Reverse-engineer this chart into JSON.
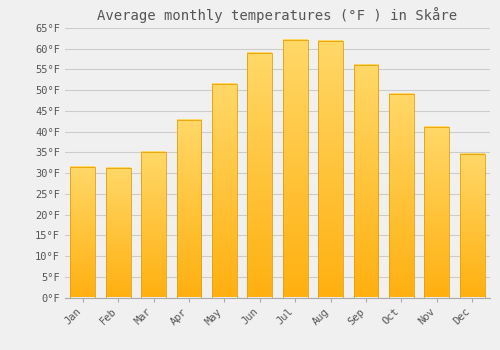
{
  "title": "Average monthly temperatures (°F ) in Skåre",
  "months": [
    "Jan",
    "Feb",
    "Mar",
    "Apr",
    "May",
    "Jun",
    "Jul",
    "Aug",
    "Sep",
    "Oct",
    "Nov",
    "Dec"
  ],
  "values": [
    31.5,
    31.3,
    35.1,
    42.8,
    51.4,
    59.0,
    62.1,
    61.9,
    56.1,
    49.1,
    41.2,
    34.7
  ],
  "bar_color_bottom": "#FFB010",
  "bar_color_top": "#FFD868",
  "bar_edge_color": "#E8A000",
  "background_color": "#F0F0F0",
  "grid_color": "#CCCCCC",
  "text_color": "#555555",
  "ylim": [
    0,
    65
  ],
  "yticks": [
    0,
    5,
    10,
    15,
    20,
    25,
    30,
    35,
    40,
    45,
    50,
    55,
    60,
    65
  ],
  "title_fontsize": 10,
  "tick_fontsize": 7.5
}
